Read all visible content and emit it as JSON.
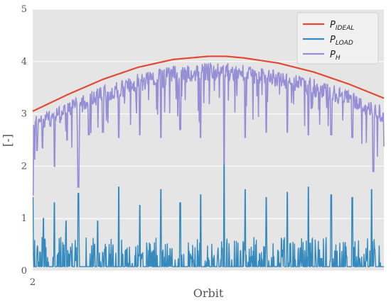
{
  "chart_data": {
    "type": "line",
    "xlabel": "Orbit",
    "ylabel": "[-]",
    "x_tick_labels": [
      "2"
    ],
    "ylim": [
      0,
      5
    ],
    "y_ticks": [
      0,
      1,
      2,
      3,
      4,
      5
    ],
    "x_range": [
      0,
      1
    ],
    "grid": true,
    "legend_position": "top-right",
    "series": [
      {
        "name": "P_IDEAL",
        "legend_main": "P",
        "legend_sub": "IDEAL",
        "color": "#E24A33",
        "description": "smooth arc",
        "x": [
          0.0,
          0.1,
          0.2,
          0.3,
          0.4,
          0.5,
          0.55,
          0.6,
          0.7,
          0.8,
          0.9,
          1.0
        ],
        "y": [
          3.05,
          3.37,
          3.66,
          3.89,
          4.04,
          4.1,
          4.1,
          4.07,
          3.97,
          3.8,
          3.57,
          3.3
        ]
      },
      {
        "name": "P_LOAD",
        "legend_main": "P",
        "legend_sub": "LOAD",
        "color": "#348ABD",
        "baseline": 0.08,
        "peaks": [
          {
            "x": 0.0,
            "y": 1.4
          },
          {
            "x": 0.031,
            "y": 1.0
          },
          {
            "x": 0.062,
            "y": 1.3
          },
          {
            "x": 0.095,
            "y": 0.95
          },
          {
            "x": 0.13,
            "y": 1.48
          },
          {
            "x": 0.185,
            "y": 0.95
          },
          {
            "x": 0.245,
            "y": 1.6
          },
          {
            "x": 0.305,
            "y": 1.25
          },
          {
            "x": 0.365,
            "y": 1.55
          },
          {
            "x": 0.42,
            "y": 1.3
          },
          {
            "x": 0.478,
            "y": 1.45
          },
          {
            "x": 0.545,
            "y": 2.1
          },
          {
            "x": 0.605,
            "y": 1.55
          },
          {
            "x": 0.665,
            "y": 1.4
          },
          {
            "x": 0.725,
            "y": 1.5
          },
          {
            "x": 0.785,
            "y": 1.6
          },
          {
            "x": 0.85,
            "y": 1.45
          },
          {
            "x": 0.91,
            "y": 1.4
          },
          {
            "x": 0.965,
            "y": 1.55
          }
        ]
      },
      {
        "name": "P_H",
        "legend_main": "P",
        "legend_sub": "H",
        "color": "#988ED5",
        "dips": [
          {
            "x": 0.0,
            "y": 1.45
          },
          {
            "x": 0.012,
            "y": 2.3
          },
          {
            "x": 0.028,
            "y": 2.35
          },
          {
            "x": 0.062,
            "y": 2.0
          },
          {
            "x": 0.098,
            "y": 2.5
          },
          {
            "x": 0.13,
            "y": 1.6
          },
          {
            "x": 0.16,
            "y": 2.6
          },
          {
            "x": 0.2,
            "y": 2.65
          },
          {
            "x": 0.245,
            "y": 2.55
          },
          {
            "x": 0.305,
            "y": 2.6
          },
          {
            "x": 0.365,
            "y": 2.55
          },
          {
            "x": 0.42,
            "y": 2.7
          },
          {
            "x": 0.478,
            "y": 2.55
          },
          {
            "x": 0.545,
            "y": 2.05
          },
          {
            "x": 0.605,
            "y": 2.55
          },
          {
            "x": 0.665,
            "y": 2.65
          },
          {
            "x": 0.725,
            "y": 2.65
          },
          {
            "x": 0.785,
            "y": 2.6
          },
          {
            "x": 0.85,
            "y": 2.6
          },
          {
            "x": 0.91,
            "y": 2.55
          },
          {
            "x": 0.97,
            "y": 1.9
          }
        ]
      }
    ]
  }
}
